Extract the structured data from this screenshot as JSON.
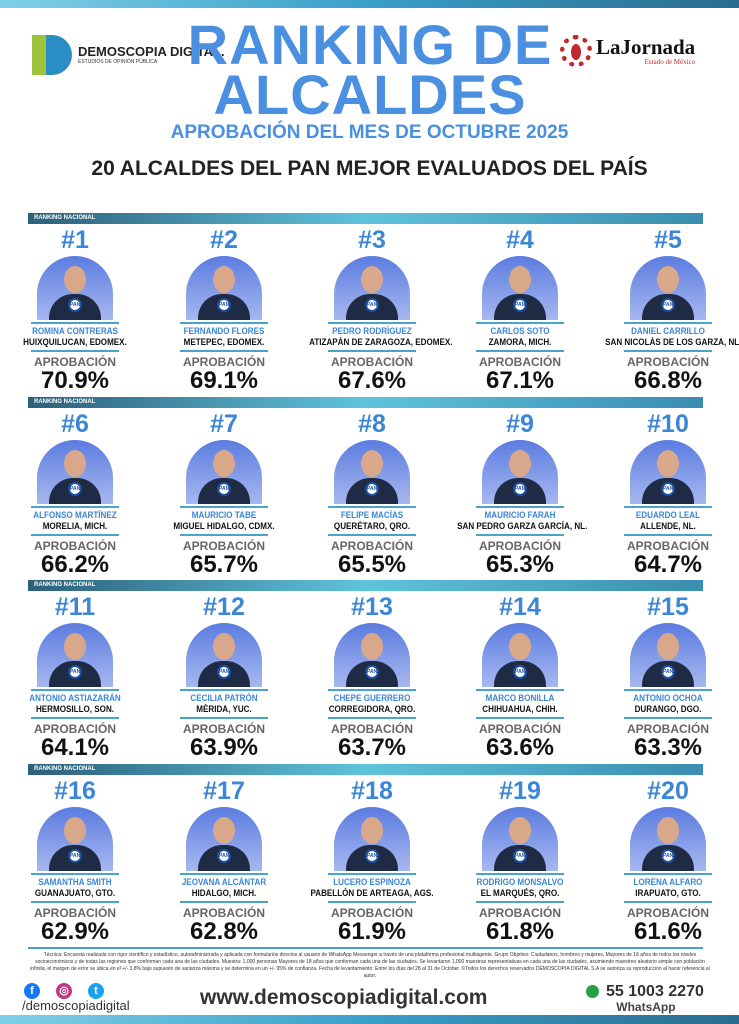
{
  "header": {
    "logo_left": {
      "name": "DEMOSCOPIA DIGITAL.",
      "tagline": "ESTUDIOS DE OPINIÓN PÚBLICA"
    },
    "title": "RANKING DE ALCALDES",
    "subtitle": "APROBACIÓN DEL MES DE OCTUBRE 2025",
    "logo_right": {
      "name": "LaJornada",
      "tagline": "Estado de México"
    },
    "heading": "20 ALCALDES DEL PAN MEJOR EVALUADOS DEL PAÍS"
  },
  "section_label": "RANKING NACIONAL",
  "approval_label": "APROBACIÓN",
  "badge": "PAN",
  "colors": {
    "accent": "#3b86d6",
    "bar": "#4aa3c8",
    "pan_blue": "#1c4fa0"
  },
  "mayors": [
    {
      "rank": "#1",
      "name": "ROMINA CONTRERAS",
      "city": "HUIXQUILUCAN, EDOMEX.",
      "approval": "70.9%"
    },
    {
      "rank": "#2",
      "name": "FERNANDO FLORES",
      "city": "METEPEC, EDOMEX.",
      "approval": "69.1%"
    },
    {
      "rank": "#3",
      "name": "PEDRO RODRÍGUEZ",
      "city": "ATIZAPÁN DE ZARAGOZA, EDOMEX.",
      "approval": "67.6%"
    },
    {
      "rank": "#4",
      "name": "CARLOS SOTO",
      "city": "ZAMORA, MICH.",
      "approval": "67.1%"
    },
    {
      "rank": "#5",
      "name": "DANIEL CARRILLO",
      "city": "SAN NICOLÁS DE LOS GARZA, NL.",
      "approval": "66.8%"
    },
    {
      "rank": "#6",
      "name": "ALFONSO MARTÍNEZ",
      "city": "MORELIA, MICH.",
      "approval": "66.2%"
    },
    {
      "rank": "#7",
      "name": "MAURICIO TABE",
      "city": "MIGUEL HIDALGO, CDMX.",
      "approval": "65.7%"
    },
    {
      "rank": "#8",
      "name": "FELIPE MACÍAS",
      "city": "QUERÉTARO, QRO.",
      "approval": "65.5%"
    },
    {
      "rank": "#9",
      "name": "MAURICIO FARAH",
      "city": "SAN PEDRO GARZA GARCÍA, NL.",
      "approval": "65.3%"
    },
    {
      "rank": "#10",
      "name": "EDUARDO LEAL",
      "city": "ALLENDE, NL.",
      "approval": "64.7%"
    },
    {
      "rank": "#11",
      "name": "ANTONIO ASTIAZARÁN",
      "city": "HERMOSILLO, SON.",
      "approval": "64.1%"
    },
    {
      "rank": "#12",
      "name": "CECILIA PATRÓN",
      "city": "MÉRIDA, YUC.",
      "approval": "63.9%"
    },
    {
      "rank": "#13",
      "name": "CHEPE GUERRERO",
      "city": "CORREGIDORA, QRO.",
      "approval": "63.7%"
    },
    {
      "rank": "#14",
      "name": "MARCO BONILLA",
      "city": "CHIHUAHUA, CHIH.",
      "approval": "63.6%"
    },
    {
      "rank": "#15",
      "name": "ANTONIO OCHOA",
      "city": "DURANGO, DGO.",
      "approval": "63.3%"
    },
    {
      "rank": "#16",
      "name": "SAMANTHA SMITH",
      "city": "GUANAJUATO, GTO.",
      "approval": "62.9%"
    },
    {
      "rank": "#17",
      "name": "JEOVANA ALCÁNTAR",
      "city": "HIDALGO, MICH.",
      "approval": "62.8%"
    },
    {
      "rank": "#18",
      "name": "LUCERO ESPINOZA",
      "city": "PABELLÓN DE ARTEAGA, AGS.",
      "approval": "61.9%"
    },
    {
      "rank": "#19",
      "name": "RODRIGO MONSALVO",
      "city": "EL MARQUÉS, QRO.",
      "approval": "61.8%"
    },
    {
      "rank": "#20",
      "name": "LORENA ALFARO",
      "city": "IRAPUATO, GTO.",
      "approval": "61.6%"
    }
  ],
  "footer": {
    "disclaimer": "Técnica: Encuesta realizada con rigor científico y estadístico, autoadministrada y aplicada con formularios directos al usuario de WhatsApp Messenger a través de una plataforma profesional multiagente. Grupo Objetivo: Ciudadanos, hombres y mujeres, Mayores de 18 años de todos los niveles socioeconómicos y de todas las regiones que conforman cada una de las ciudades. Muestra: 1,000 personas Mayores de 18 años que conforman cada una de las ciudades. Se levantaron 1,000 muestras representativas en cada una de las ciudades, asumiendo muestreo aleatorio simple con población infinita, el margen de error se ubica en el +/- 3.8% bajo supuesto de varianza máxima y se determina en un +/- 95% de confianza. Fecha de levantamiento: Entre los días del 28 al 31 de October. ©Todos los derechos reservados DEMOSCOPIA DIGITAL S.A se autoriza su reproducción al hacer referencia al autor.",
    "handle": "/demoscopiadigital",
    "website": "www.demoscopiadigital.com",
    "phone": "55 1003 2270",
    "phone_label": "WhatsApp"
  }
}
